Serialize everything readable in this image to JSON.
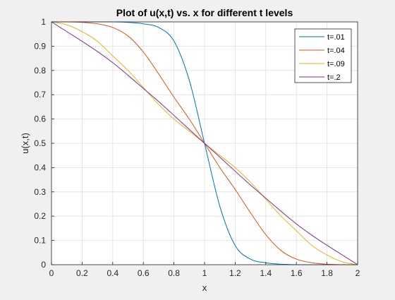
{
  "chart_data": {
    "type": "line",
    "title": "Plot of u(x,t) vs. x for different t levels",
    "xlabel": "x",
    "ylabel": "u(x,t)",
    "xlim": [
      0,
      2
    ],
    "ylim": [
      0,
      1
    ],
    "xticks": [
      "0",
      "0.2",
      "0.4",
      "0.6",
      "0.8",
      "1",
      "1.2",
      "1.4",
      "1.6",
      "1.8",
      "2"
    ],
    "yticks": [
      "0",
      "0.1",
      "0.2",
      "0.3",
      "0.4",
      "0.5",
      "0.6",
      "0.7",
      "0.8",
      "0.9",
      "1"
    ],
    "grid": true,
    "legend_position": "top-right",
    "x": [
      0,
      0.1,
      0.2,
      0.3,
      0.4,
      0.5,
      0.6,
      0.7,
      0.8,
      0.9,
      1.0,
      1.1,
      1.2,
      1.3,
      1.4,
      1.5,
      1.6,
      1.7,
      1.8,
      1.9,
      2.0
    ],
    "series": [
      {
        "name": "t=.01",
        "color": "#0072bd",
        "values": [
          1,
          1,
          1,
          1,
          1,
          0.998,
          0.992,
          0.977,
          0.921,
          0.76,
          0.5,
          0.24,
          0.079,
          0.023,
          0.008,
          0.002,
          0,
          0,
          0,
          0,
          0
        ]
      },
      {
        "name": "t=.04",
        "color": "#d95319",
        "values": [
          1,
          1,
          0.998,
          0.992,
          0.977,
          0.942,
          0.876,
          0.786,
          0.69,
          0.6,
          0.5,
          0.4,
          0.31,
          0.214,
          0.124,
          0.058,
          0.023,
          0.008,
          0.002,
          0,
          0
        ]
      },
      {
        "name": "t=.09",
        "color": "#edb120",
        "values": [
          1,
          0.988,
          0.96,
          0.92,
          0.86,
          0.8,
          0.73,
          0.66,
          0.6,
          0.55,
          0.5,
          0.45,
          0.4,
          0.34,
          0.27,
          0.2,
          0.14,
          0.08,
          0.04,
          0.012,
          0
        ]
      },
      {
        "name": "t=.2",
        "color": "#7e2f8e",
        "values": [
          1,
          0.96,
          0.92,
          0.878,
          0.832,
          0.78,
          0.726,
          0.672,
          0.615,
          0.557,
          0.5,
          0.443,
          0.385,
          0.328,
          0.274,
          0.22,
          0.168,
          0.122,
          0.08,
          0.04,
          0
        ]
      }
    ]
  }
}
